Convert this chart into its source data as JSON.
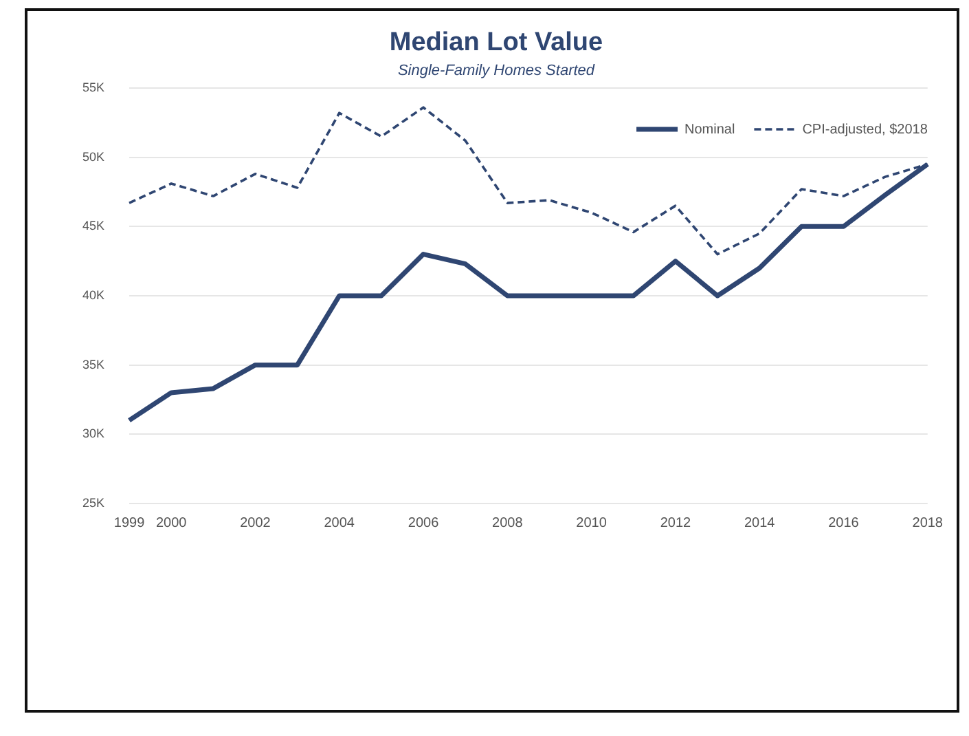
{
  "chart_data": {
    "type": "line",
    "title": "Median Lot Value",
    "subtitle": "Single-Family Homes Started",
    "categories": [
      "1999",
      "2000",
      null,
      "2002",
      null,
      "2004",
      null,
      "2006",
      null,
      "2008",
      null,
      "2010",
      null,
      "2012",
      null,
      "2014",
      null,
      "2016",
      null,
      "2018"
    ],
    "series": [
      {
        "name": "Nominal",
        "color": "#2f4672",
        "line_style": "solid",
        "values": [
          31000,
          33000,
          33300,
          35000,
          35000,
          40000,
          40000,
          43000,
          42300,
          40000,
          40000,
          40000,
          40000,
          42500,
          40000,
          42000,
          45000,
          45000,
          47300,
          49500
        ]
      },
      {
        "name": "CPI-adjusted, $2018",
        "color": "#2f4672",
        "line_style": "dashed",
        "values": [
          46700,
          48100,
          47200,
          48800,
          47800,
          53200,
          51500,
          53600,
          51200,
          46700,
          46900,
          46000,
          44600,
          46500,
          43000,
          44500,
          47700,
          47200,
          48600,
          49500
        ]
      }
    ],
    "ylim": [
      25000,
      55000
    ],
    "yticks": [
      {
        "value": 25000,
        "label": "25K"
      },
      {
        "value": 30000,
        "label": "30K"
      },
      {
        "value": 35000,
        "label": "35K"
      },
      {
        "value": 40000,
        "label": "40K"
      },
      {
        "value": 45000,
        "label": "45K"
      },
      {
        "value": 50000,
        "label": "50K"
      },
      {
        "value": 55000,
        "label": "55K"
      }
    ],
    "grid": "y",
    "legend": "top right",
    "marker": "none"
  }
}
